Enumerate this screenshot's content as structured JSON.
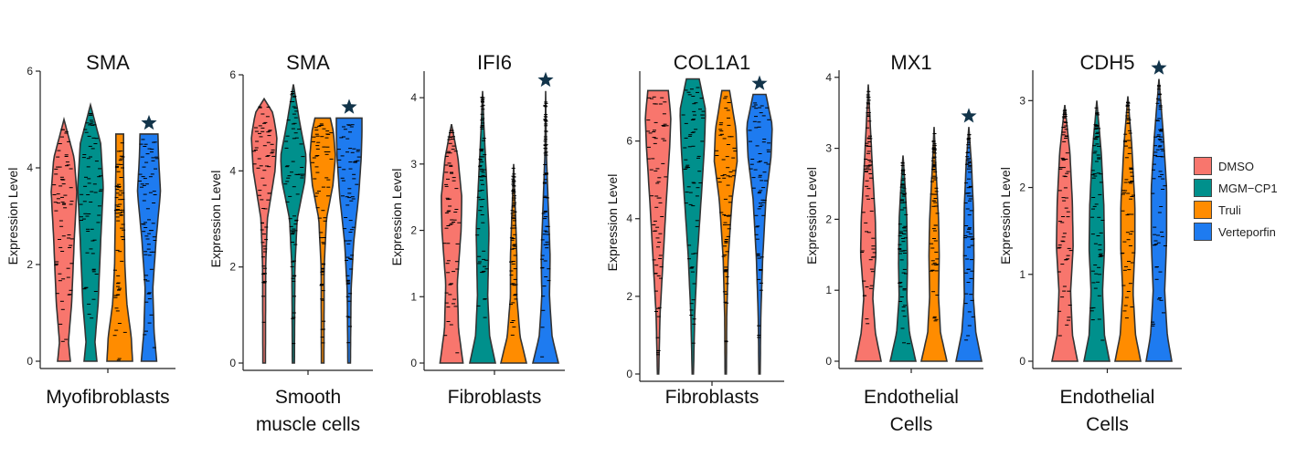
{
  "chart_data": [
    {
      "type": "violin",
      "title": "SMA",
      "xlabel": "Myofibroblasts",
      "ylabel": "Expression Level",
      "ylim": [
        0,
        6
      ],
      "yticks": [
        0,
        2,
        4,
        6
      ],
      "star_on": "Verteporfin",
      "series": [
        {
          "name": "DMSO",
          "max": 5.0,
          "profile": [
            [
              0,
              0.5
            ],
            [
              0.4,
              0.35
            ],
            [
              1.2,
              0.6
            ],
            [
              2.5,
              0.8
            ],
            [
              3.5,
              1.0
            ],
            [
              4.2,
              0.8
            ],
            [
              5.0,
              0.0
            ]
          ]
        },
        {
          "name": "MGM-CP1",
          "max": 5.3,
          "profile": [
            [
              0,
              0.5
            ],
            [
              0.4,
              0.35
            ],
            [
              1.2,
              0.6
            ],
            [
              2.5,
              0.8
            ],
            [
              3.6,
              1.0
            ],
            [
              4.5,
              0.8
            ],
            [
              5.3,
              0.0
            ]
          ]
        },
        {
          "name": "Truli",
          "max": 4.7,
          "profile": [
            [
              0,
              1.0
            ],
            [
              0.5,
              0.9
            ],
            [
              1.2,
              0.55
            ],
            [
              2.0,
              0.4
            ],
            [
              3.0,
              0.35
            ],
            [
              4.0,
              0.3
            ],
            [
              4.7,
              0.3
            ]
          ]
        },
        {
          "name": "Verteporfin",
          "max": 4.7,
          "profile": [
            [
              0,
              0.6
            ],
            [
              0.6,
              0.4
            ],
            [
              1.5,
              0.3
            ],
            [
              2.5,
              0.55
            ],
            [
              3.5,
              0.9
            ],
            [
              4.2,
              0.75
            ],
            [
              4.7,
              0.7
            ]
          ]
        }
      ]
    },
    {
      "type": "violin",
      "title": "SMA",
      "xlabel": "Smooth muscle cells",
      "xlabel_lines": [
        "Smooth",
        "muscle cells"
      ],
      "ylabel": "Expression Level",
      "ylim": [
        0,
        6
      ],
      "yticks": [
        0,
        2,
        4,
        6
      ],
      "star_on": "Verteporfin",
      "series": [
        {
          "name": "DMSO",
          "max": 5.5,
          "profile": [
            [
              0,
              0.1
            ],
            [
              2.0,
              0.12
            ],
            [
              3.0,
              0.25
            ],
            [
              4.0,
              0.85
            ],
            [
              4.7,
              1.0
            ],
            [
              5.2,
              0.7
            ],
            [
              5.5,
              0.0
            ]
          ]
        },
        {
          "name": "MGM-CP1",
          "max": 5.8,
          "profile": [
            [
              0,
              0.08
            ],
            [
              2.0,
              0.12
            ],
            [
              3.0,
              0.3
            ],
            [
              3.8,
              0.9
            ],
            [
              4.3,
              1.0
            ],
            [
              5.0,
              0.5
            ],
            [
              5.8,
              0.0
            ]
          ]
        },
        {
          "name": "Truli",
          "max": 5.1,
          "profile": [
            [
              0,
              0.1
            ],
            [
              2.0,
              0.12
            ],
            [
              3.0,
              0.3
            ],
            [
              3.7,
              0.8
            ],
            [
              4.3,
              1.0
            ],
            [
              4.8,
              0.85
            ],
            [
              5.1,
              0.6
            ]
          ]
        },
        {
          "name": "Verteporfin",
          "max": 5.1,
          "profile": [
            [
              0,
              0.1
            ],
            [
              1.5,
              0.15
            ],
            [
              2.5,
              0.35
            ],
            [
              3.5,
              0.75
            ],
            [
              4.3,
              0.95
            ],
            [
              4.8,
              1.0
            ],
            [
              5.1,
              1.0
            ]
          ]
        }
      ]
    },
    {
      "type": "violin",
      "title": "IFI6",
      "xlabel": "Fibroblasts",
      "ylabel": "Expression Level",
      "ylim": [
        0,
        4.4
      ],
      "yticks": [
        0,
        1,
        2,
        3,
        4
      ],
      "star_on": "Verteporfin",
      "series": [
        {
          "name": "DMSO",
          "max": 3.6,
          "profile": [
            [
              0,
              0.9
            ],
            [
              0.5,
              0.55
            ],
            [
              1.2,
              0.45
            ],
            [
              2.0,
              0.75
            ],
            [
              2.5,
              0.8
            ],
            [
              3.1,
              0.5
            ],
            [
              3.6,
              0.0
            ]
          ]
        },
        {
          "name": "MGM-CP1",
          "max": 4.1,
          "profile": [
            [
              0,
              1.0
            ],
            [
              0.4,
              0.55
            ],
            [
              1.0,
              0.4
            ],
            [
              2.0,
              0.5
            ],
            [
              3.0,
              0.25
            ],
            [
              3.6,
              0.1
            ],
            [
              4.1,
              0.0
            ]
          ]
        },
        {
          "name": "Truli",
          "max": 3.0,
          "profile": [
            [
              0,
              1.0
            ],
            [
              0.4,
              0.5
            ],
            [
              1.0,
              0.25
            ],
            [
              1.6,
              0.25
            ],
            [
              2.2,
              0.15
            ],
            [
              2.7,
              0.05
            ],
            [
              3.0,
              0.0
            ]
          ]
        },
        {
          "name": "Verteporfin",
          "max": 4.1,
          "profile": [
            [
              0,
              1.0
            ],
            [
              0.4,
              0.5
            ],
            [
              1.0,
              0.3
            ],
            [
              1.6,
              0.35
            ],
            [
              2.4,
              0.2
            ],
            [
              3.2,
              0.05
            ],
            [
              4.1,
              0.0
            ]
          ]
        }
      ]
    },
    {
      "type": "violin",
      "title": "COL1A1",
      "xlabel": "Fibroblasts",
      "ylabel": "Expression Level",
      "ylim": [
        0,
        7.8
      ],
      "yticks": [
        0,
        2,
        4,
        6
      ],
      "star_on": "Verteporfin",
      "series": [
        {
          "name": "DMSO",
          "max": 7.3,
          "profile": [
            [
              0,
              0.05
            ],
            [
              1.5,
              0.15
            ],
            [
              3.0,
              0.4
            ],
            [
              4.5,
              0.65
            ],
            [
              5.8,
              0.9
            ],
            [
              6.6,
              1.0
            ],
            [
              7.3,
              0.8
            ]
          ]
        },
        {
          "name": "MGM-CP1",
          "max": 7.6,
          "profile": [
            [
              0,
              0.05
            ],
            [
              1.5,
              0.15
            ],
            [
              3.0,
              0.35
            ],
            [
              4.5,
              0.65
            ],
            [
              5.8,
              0.9
            ],
            [
              6.8,
              1.0
            ],
            [
              7.6,
              0.5
            ]
          ]
        },
        {
          "name": "Truli",
          "max": 7.3,
          "profile": [
            [
              0,
              0.05
            ],
            [
              1.5,
              0.08
            ],
            [
              3.0,
              0.2
            ],
            [
              4.5,
              0.5
            ],
            [
              5.5,
              0.9
            ],
            [
              6.3,
              0.8
            ],
            [
              7.3,
              0.3
            ]
          ]
        },
        {
          "name": "Verteporfin",
          "max": 7.2,
          "profile": [
            [
              0,
              0.05
            ],
            [
              1.5,
              0.1
            ],
            [
              3.0,
              0.25
            ],
            [
              4.5,
              0.5
            ],
            [
              5.6,
              0.9
            ],
            [
              6.4,
              1.0
            ],
            [
              7.2,
              0.5
            ]
          ]
        }
      ]
    },
    {
      "type": "violin",
      "title": "MX1",
      "xlabel": "Endothelial Cells",
      "xlabel_lines": [
        "Endothelial",
        "Cells"
      ],
      "ylabel": "Expression Level",
      "ylim": [
        0,
        4.1
      ],
      "yticks": [
        0,
        1,
        2,
        3,
        4
      ],
      "star_on": "Verteporfin",
      "series": [
        {
          "name": "DMSO",
          "max": 3.9,
          "profile": [
            [
              0,
              1.0
            ],
            [
              0.4,
              0.55
            ],
            [
              0.9,
              0.35
            ],
            [
              1.5,
              0.6
            ],
            [
              2.0,
              0.55
            ],
            [
              2.8,
              0.3
            ],
            [
              3.9,
              0.0
            ]
          ]
        },
        {
          "name": "MGM-CP1",
          "max": 2.9,
          "profile": [
            [
              0,
              1.0
            ],
            [
              0.4,
              0.5
            ],
            [
              0.9,
              0.3
            ],
            [
              1.4,
              0.35
            ],
            [
              2.0,
              0.3
            ],
            [
              2.5,
              0.15
            ],
            [
              2.9,
              0.0
            ]
          ]
        },
        {
          "name": "Truli",
          "max": 3.3,
          "profile": [
            [
              0,
              1.0
            ],
            [
              0.4,
              0.5
            ],
            [
              0.9,
              0.35
            ],
            [
              1.5,
              0.4
            ],
            [
              2.0,
              0.35
            ],
            [
              2.7,
              0.15
            ],
            [
              3.3,
              0.0
            ]
          ]
        },
        {
          "name": "Verteporfin",
          "max": 3.3,
          "profile": [
            [
              0,
              1.0
            ],
            [
              0.4,
              0.55
            ],
            [
              0.9,
              0.35
            ],
            [
              1.5,
              0.4
            ],
            [
              2.2,
              0.35
            ],
            [
              2.8,
              0.2
            ],
            [
              3.3,
              0.0
            ]
          ]
        }
      ]
    },
    {
      "type": "violin",
      "title": "CDH5",
      "xlabel": "Endothelial Cells",
      "xlabel_lines": [
        "Endothelial",
        "Cells"
      ],
      "ylabel": "Expression Level",
      "ylim": [
        0,
        3.35
      ],
      "yticks": [
        0,
        1,
        2,
        3
      ],
      "star_on": "Verteporfin",
      "series": [
        {
          "name": "DMSO",
          "max": 2.95,
          "profile": [
            [
              0,
              1.0
            ],
            [
              0.3,
              0.6
            ],
            [
              0.8,
              0.45
            ],
            [
              1.3,
              0.65
            ],
            [
              1.8,
              0.6
            ],
            [
              2.4,
              0.4
            ],
            [
              2.95,
              0.0
            ]
          ]
        },
        {
          "name": "MGM-CP1",
          "max": 3.0,
          "profile": [
            [
              0,
              1.0
            ],
            [
              0.3,
              0.6
            ],
            [
              0.8,
              0.45
            ],
            [
              1.3,
              0.6
            ],
            [
              1.8,
              0.55
            ],
            [
              2.4,
              0.35
            ],
            [
              3.0,
              0.0
            ]
          ]
        },
        {
          "name": "Truli",
          "max": 3.05,
          "profile": [
            [
              0,
              1.0
            ],
            [
              0.3,
              0.6
            ],
            [
              0.8,
              0.4
            ],
            [
              1.3,
              0.55
            ],
            [
              1.8,
              0.55
            ],
            [
              2.5,
              0.3
            ],
            [
              3.05,
              0.0
            ]
          ]
        },
        {
          "name": "Verteporfin",
          "max": 3.25,
          "profile": [
            [
              0,
              1.0
            ],
            [
              0.3,
              0.65
            ],
            [
              0.8,
              0.45
            ],
            [
              1.4,
              0.6
            ],
            [
              2.0,
              0.6
            ],
            [
              2.6,
              0.35
            ],
            [
              3.25,
              0.0
            ]
          ]
        }
      ]
    }
  ],
  "legend": {
    "items": [
      {
        "label": "DMSO",
        "color": "#F8766D"
      },
      {
        "label": "MGM−CP1",
        "color": "#00908C"
      },
      {
        "label": "Truli",
        "color": "#FF8C00"
      },
      {
        "label": "Verteporfin",
        "color": "#1E7BF0"
      }
    ]
  },
  "colors": {
    "star": "#12344A",
    "outline": "#333333",
    "jitter": "#000000"
  },
  "icons": {
    "significance": "star-icon"
  }
}
